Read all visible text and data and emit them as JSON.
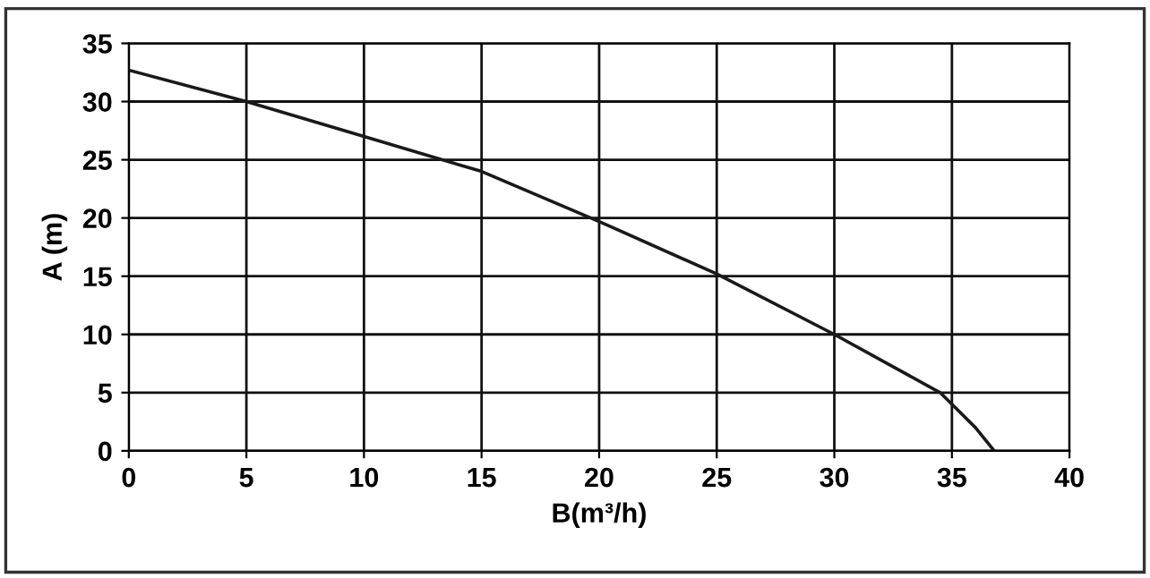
{
  "chart_data": {
    "type": "line",
    "xlabel": "B(m³/h)",
    "ylabel": "A (m)",
    "x": [
      0,
      5,
      10,
      15,
      20,
      25,
      30,
      34.5,
      35,
      36,
      36.8
    ],
    "series": [
      {
        "color": "#1a1a1a",
        "values": [
          32.7,
          30,
          27,
          24,
          19.7,
          15.2,
          10,
          5,
          4,
          2,
          0
        ]
      }
    ],
    "xlim": [
      0,
      40
    ],
    "ylim": [
      0,
      35
    ],
    "xticks": [
      0,
      5,
      10,
      15,
      20,
      25,
      30,
      35,
      40
    ],
    "yticks": [
      0,
      5,
      10,
      15,
      20,
      25,
      30,
      35
    ],
    "grid": true,
    "marker": "none",
    "line_style": "solid"
  }
}
